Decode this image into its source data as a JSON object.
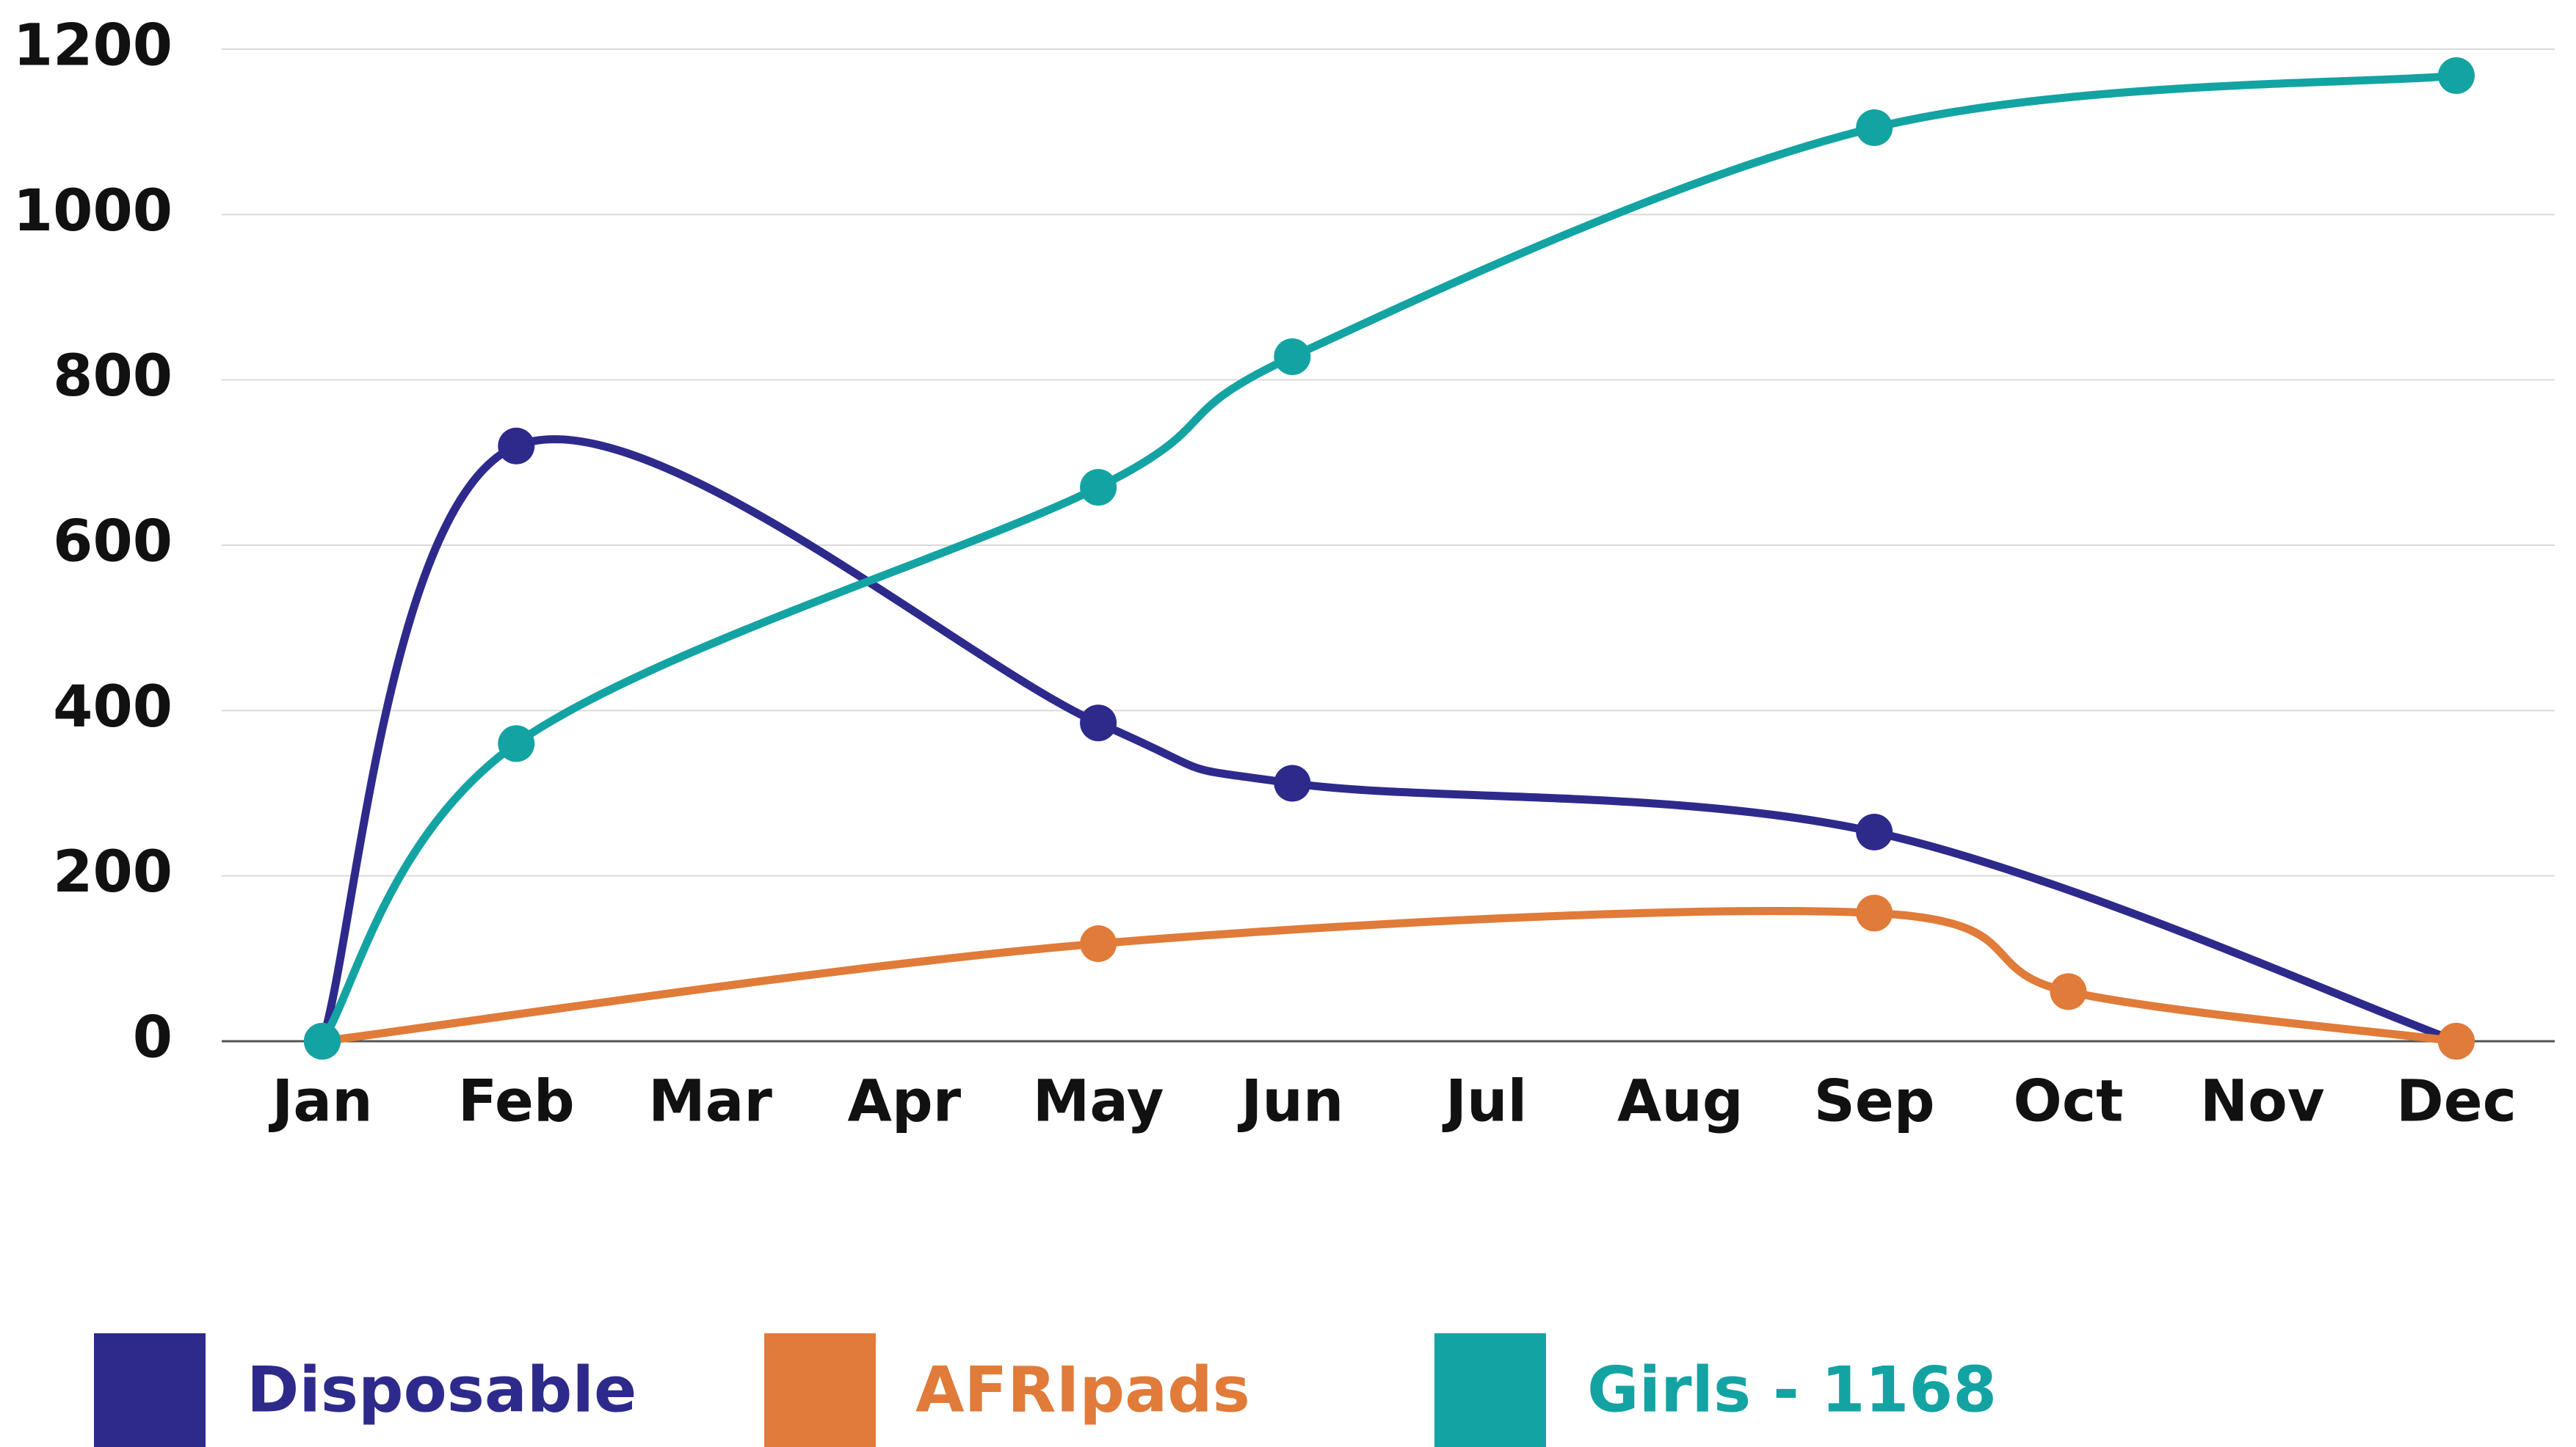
{
  "chart_data": {
    "type": "line",
    "categories": [
      "Jan",
      "Feb",
      "Mar",
      "Apr",
      "May",
      "Jun",
      "Jul",
      "Aug",
      "Sep",
      "Oct",
      "Nov",
      "Dec"
    ],
    "series": [
      {
        "name": "Disposable",
        "color": "#2e2a8c",
        "x": [
          "Jan",
          "Feb",
          "May",
          "Jun",
          "Sep",
          "Dec"
        ],
        "values": [
          0,
          720,
          385,
          312,
          253,
          0
        ]
      },
      {
        "name": "AFRIpads",
        "color": "#e07b39",
        "x": [
          "Jan",
          "May",
          "Sep",
          "Oct",
          "Dec"
        ],
        "values": [
          0,
          118,
          155,
          60,
          0
        ]
      },
      {
        "name": "Girls - 1168",
        "color": "#14a3a3",
        "x": [
          "Jan",
          "Feb",
          "May",
          "Jun",
          "Sep",
          "Dec"
        ],
        "values": [
          0,
          360,
          670,
          828,
          1105,
          1168
        ]
      }
    ],
    "ylim": [
      0,
      1200
    ],
    "yticks": [
      0,
      200,
      400,
      600,
      800,
      1000,
      1200
    ],
    "grid": true
  }
}
